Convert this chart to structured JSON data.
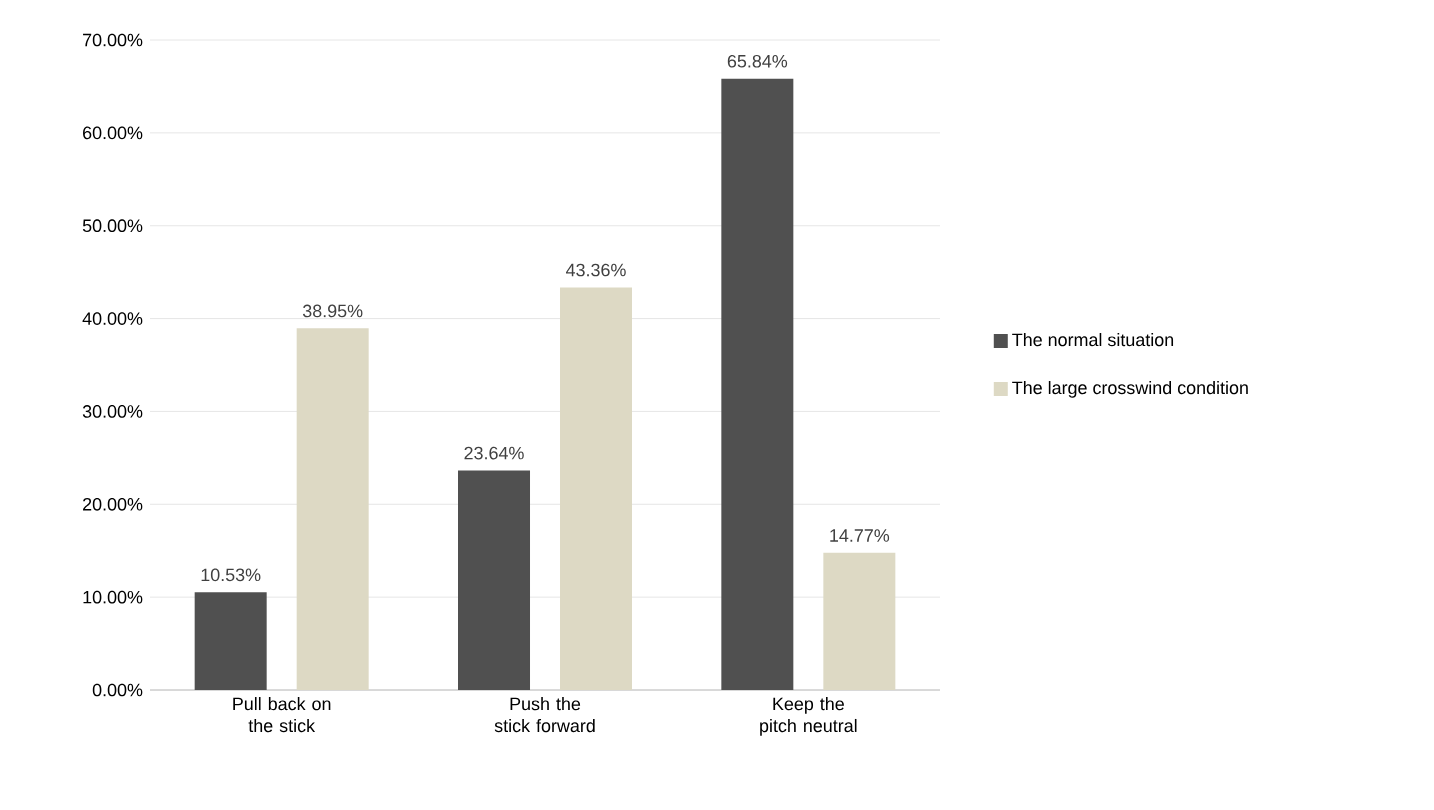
{
  "chart_data": {
    "type": "bar",
    "categories": [
      "Pull back on the stick",
      "Push the stick forward",
      "Keep the pitch neutral"
    ],
    "series": [
      {
        "name": "The normal situation",
        "color": "#505050",
        "values": [
          10.53,
          23.64,
          65.84
        ],
        "value_labels": [
          "10.53%",
          "23.64%",
          "65.84%"
        ]
      },
      {
        "name": "The large crosswind condition",
        "color": "#ddd9c4",
        "values": [
          38.95,
          43.36,
          14.77
        ],
        "value_labels": [
          "38.95%",
          "43.36%",
          "14.77%"
        ]
      }
    ],
    "ylim": [
      0,
      70
    ],
    "yticks": [
      {
        "value": 0,
        "label": "0.00%"
      },
      {
        "value": 10,
        "label": "10.00%"
      },
      {
        "value": 20,
        "label": "20.00%"
      },
      {
        "value": 30,
        "label": "30.00%"
      },
      {
        "value": 40,
        "label": "40.00%"
      },
      {
        "value": 50,
        "label": "50.00%"
      },
      {
        "value": 60,
        "label": "60.00%"
      },
      {
        "value": 70,
        "label": "70.00%"
      }
    ],
    "grid": "y",
    "legend": "right"
  }
}
